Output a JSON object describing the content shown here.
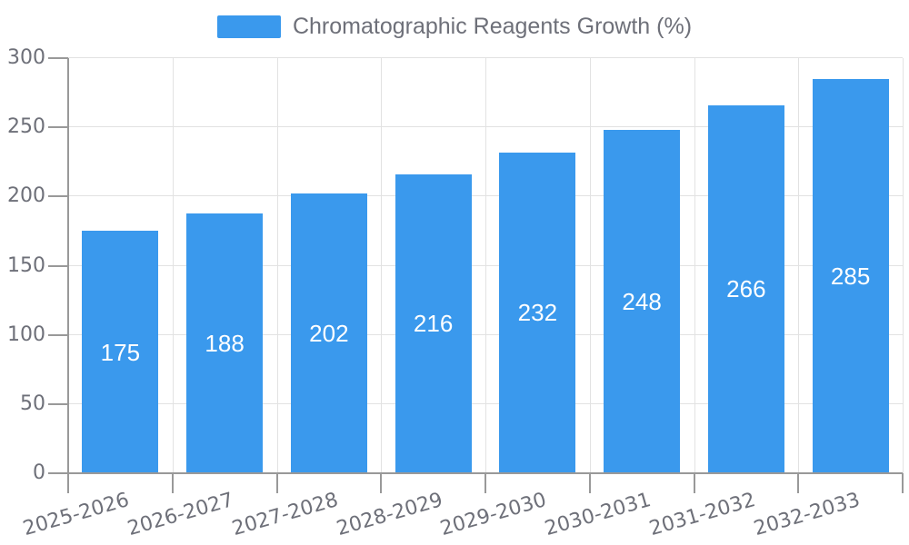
{
  "legend": {
    "label": "Chromatographic Reagents Growth (%)"
  },
  "chart_data": {
    "type": "bar",
    "title": "Chromatographic Reagents Growth (%)",
    "categories": [
      "2025-2026",
      "2026-2027",
      "2027-2028",
      "2028-2029",
      "2029-2030",
      "2030-2031",
      "2031-2032",
      "2032-2033"
    ],
    "values": [
      175,
      188,
      202,
      216,
      232,
      248,
      266,
      285
    ],
    "xlabel": "",
    "ylabel": "",
    "ylim": [
      0,
      300
    ],
    "yticks": [
      0,
      50,
      100,
      150,
      200,
      250,
      300
    ],
    "grid": true,
    "legend_position": "top-center",
    "bar_value_labels": true,
    "colors": {
      "bar": "#3A99ED",
      "bar_label": "#FFFFFF",
      "axis_text": "#6E7079",
      "axis_line": "#999999",
      "grid_line": "#E2E2E2",
      "legend_text": "#6E7079"
    }
  }
}
